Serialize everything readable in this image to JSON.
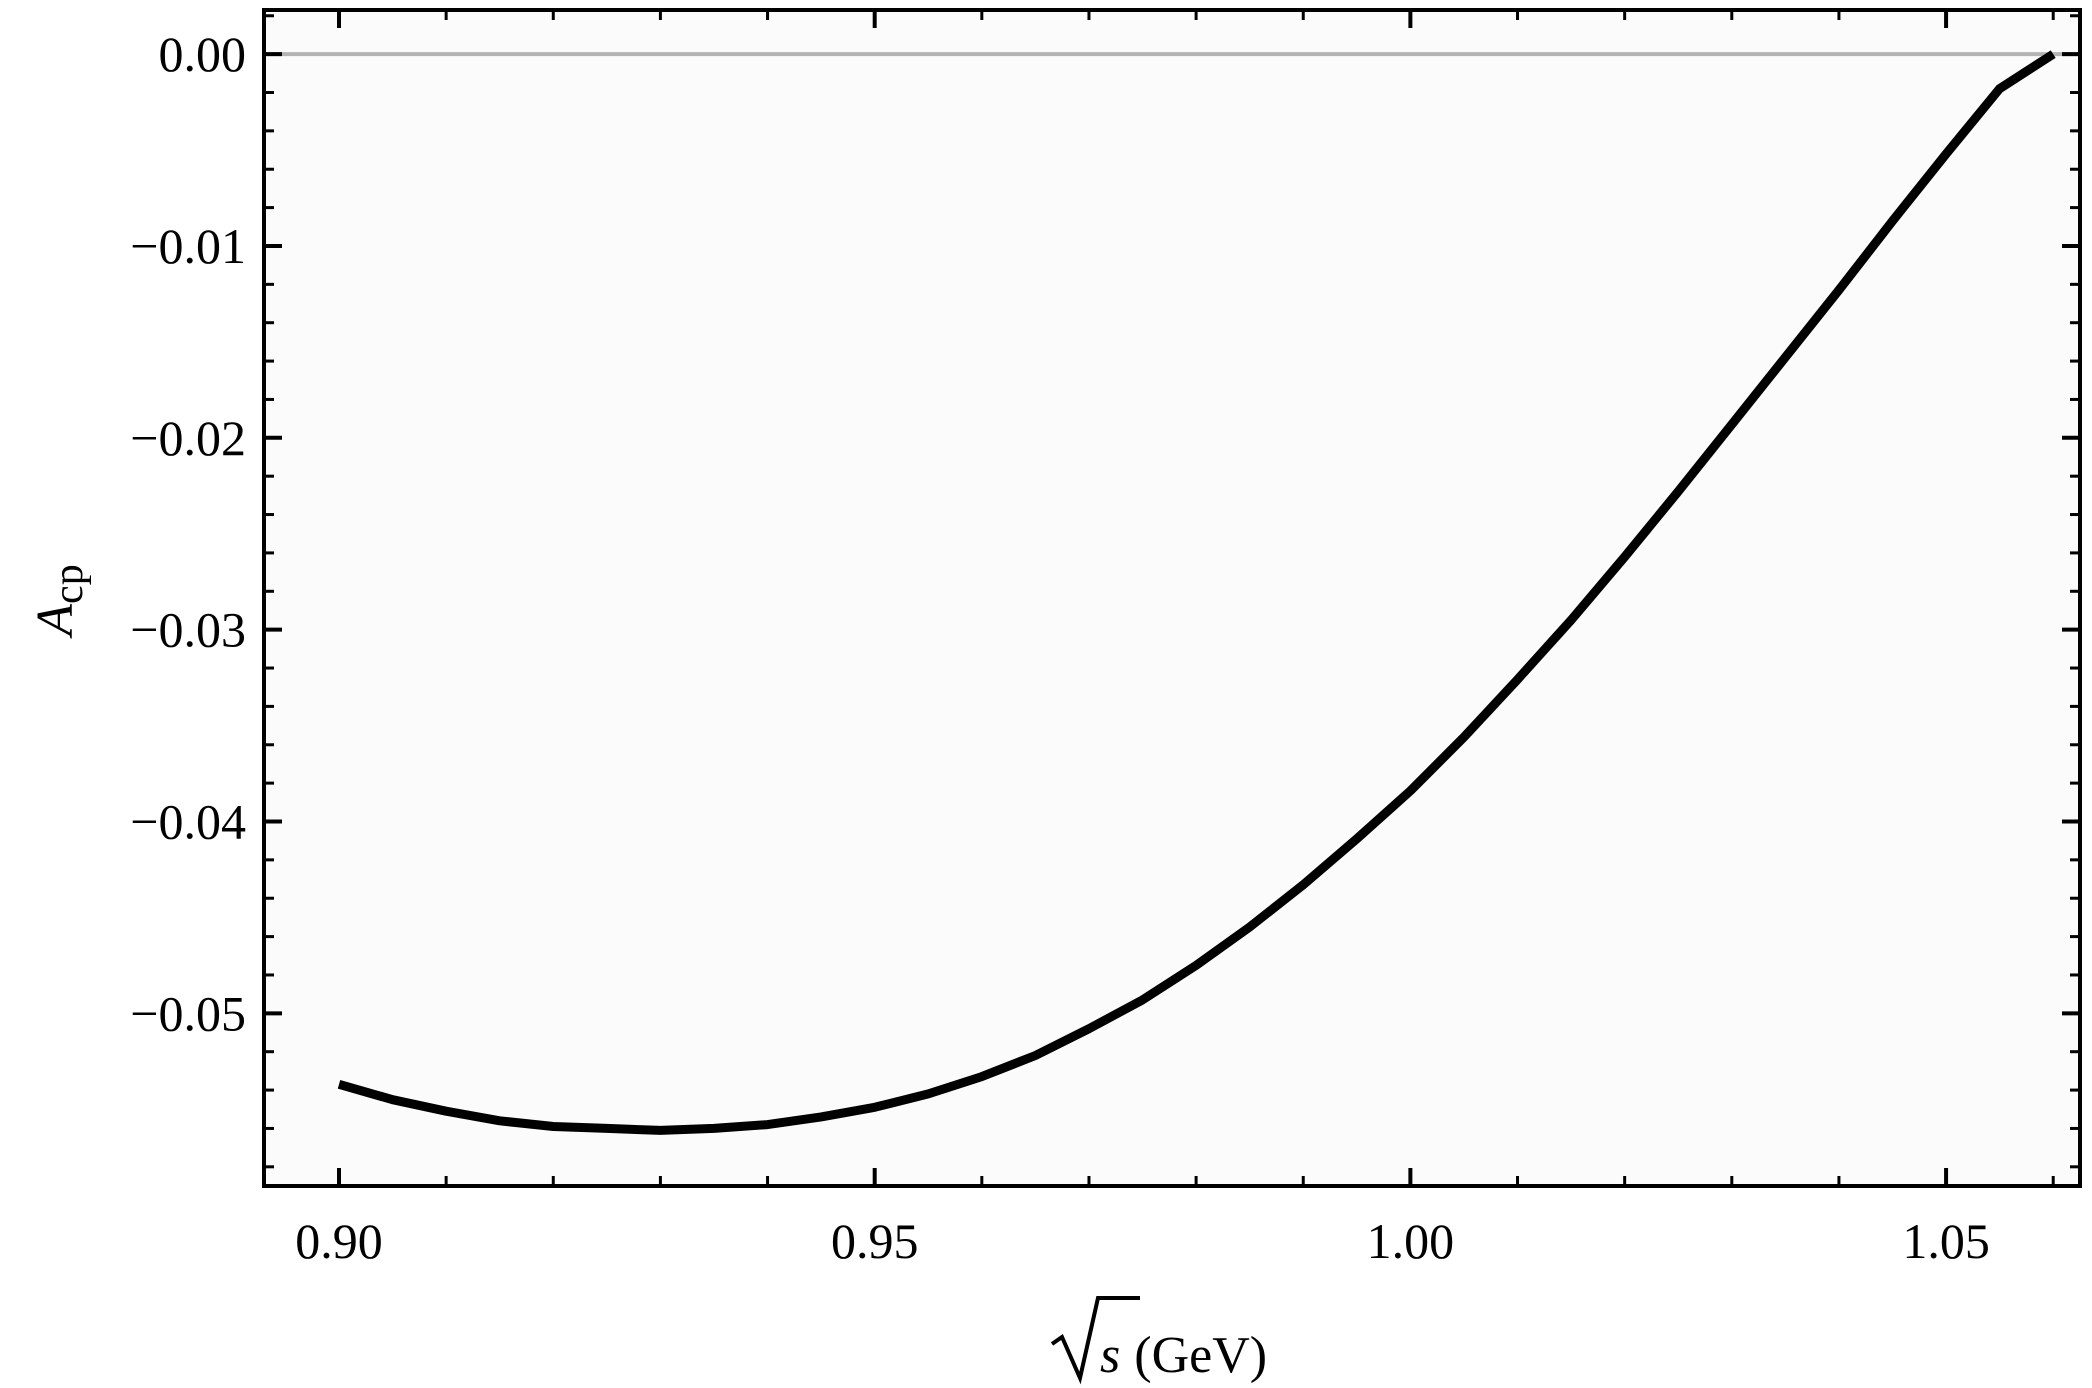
{
  "chart_data": {
    "type": "line",
    "title": "",
    "xlabel": {
      "symbol": "s",
      "unit": "(GeV)"
    },
    "ylabel": {
      "main": "A",
      "subscript": "cp"
    },
    "xlim": [
      0.893,
      1.0625
    ],
    "ylim": [
      -0.059,
      0.0023
    ],
    "x_ticks": [
      {
        "value": 0.9,
        "label": "0.90"
      },
      {
        "value": 0.95,
        "label": "0.95"
      },
      {
        "value": 1.0,
        "label": "1.00"
      },
      {
        "value": 1.05,
        "label": "1.05"
      }
    ],
    "y_ticks": [
      {
        "value": 0.0,
        "label": "0.00"
      },
      {
        "value": -0.01,
        "label": "−0.01"
      },
      {
        "value": -0.02,
        "label": "−0.02"
      },
      {
        "value": -0.03,
        "label": "−0.03"
      },
      {
        "value": -0.04,
        "label": "−0.04"
      },
      {
        "value": -0.05,
        "label": "−0.05"
      }
    ],
    "reference_line": {
      "y": 0.0,
      "color": "#b4b4b4"
    },
    "series": [
      {
        "color": "#000000",
        "x": [
          0.9,
          0.905,
          0.91,
          0.915,
          0.92,
          0.925,
          0.93,
          0.935,
          0.94,
          0.945,
          0.95,
          0.955,
          0.96,
          0.965,
          0.97,
          0.975,
          0.98,
          0.985,
          0.99,
          0.995,
          1.0,
          1.005,
          1.01,
          1.015,
          1.02,
          1.025,
          1.03,
          1.035,
          1.04,
          1.045,
          1.05,
          1.055,
          1.06
        ],
        "y": [
          -0.0537,
          -0.0545,
          -0.0551,
          -0.0556,
          -0.0559,
          -0.056,
          -0.0561,
          -0.056,
          -0.0558,
          -0.0554,
          -0.0549,
          -0.0542,
          -0.0533,
          -0.0522,
          -0.0508,
          -0.0493,
          -0.0475,
          -0.0455,
          -0.0433,
          -0.0409,
          -0.0384,
          -0.0356,
          -0.0326,
          -0.0295,
          -0.0262,
          -0.0228,
          -0.0193,
          -0.0158,
          -0.0123,
          -0.0087,
          -0.0052,
          -0.0018,
          0.0
        ]
      }
    ],
    "grid": false,
    "frame_background": "#fbfbfb"
  }
}
